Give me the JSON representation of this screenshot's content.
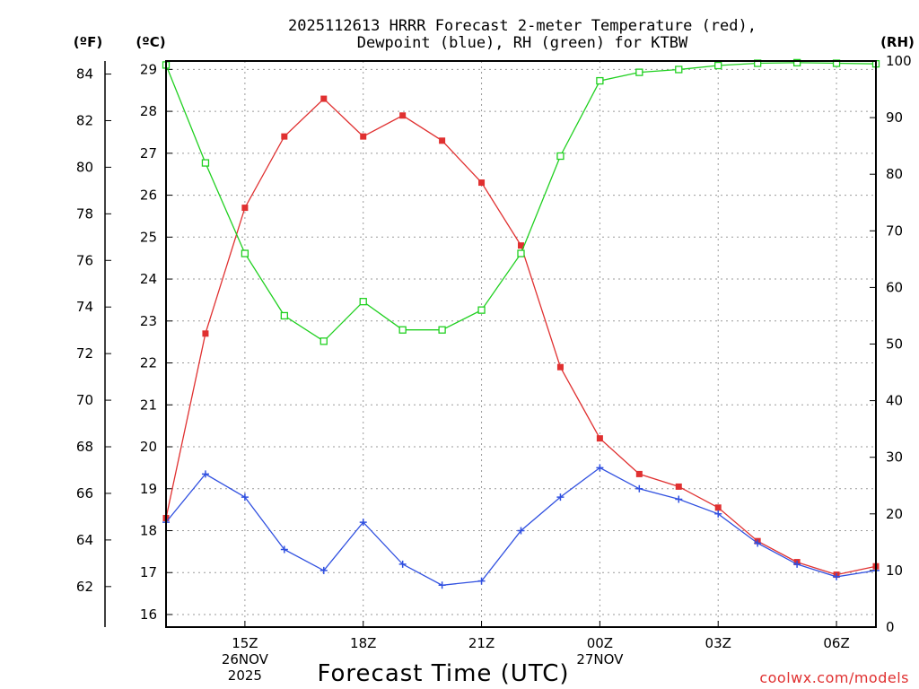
{
  "chart_data": {
    "type": "line",
    "title_line1": "2025112613 HRRR Forecast 2-meter Temperature (red),",
    "title_line2": "Dewpoint (blue), RH (green) for KTBW",
    "xlabel": "Forecast Time (UTC)",
    "credit": "coolwx.com/models",
    "unit_f": "(ºF)",
    "unit_c": "(ºC)",
    "unit_rh": "(RH)",
    "hours": [
      13,
      14,
      15,
      16,
      17,
      18,
      19,
      20,
      21,
      22,
      23,
      24,
      25,
      26,
      27,
      28,
      29,
      30,
      31
    ],
    "xlim": [
      13,
      31
    ],
    "x_ticks": [
      {
        "h": 15,
        "lines": [
          "15Z",
          "26NOV",
          "2025"
        ]
      },
      {
        "h": 18,
        "lines": [
          "18Z"
        ]
      },
      {
        "h": 21,
        "lines": [
          "21Z"
        ]
      },
      {
        "h": 24,
        "lines": [
          "00Z",
          "27NOV"
        ]
      },
      {
        "h": 27,
        "lines": [
          "03Z"
        ]
      },
      {
        "h": 30,
        "lines": [
          "06Z"
        ]
      }
    ],
    "celsius_axis": {
      "ylim": [
        15.7,
        29.2
      ],
      "ticks": [
        16,
        17,
        18,
        19,
        20,
        21,
        22,
        23,
        24,
        25,
        26,
        27,
        28,
        29
      ]
    },
    "fahrenheit_ticks": [
      62,
      64,
      66,
      68,
      70,
      72,
      74,
      76,
      78,
      80,
      82,
      84
    ],
    "rh_axis": {
      "ylim": [
        0,
        100
      ],
      "ticks": [
        0,
        10,
        20,
        30,
        40,
        50,
        60,
        70,
        80,
        90,
        100
      ]
    },
    "series": [
      {
        "name": "Temperature",
        "units": "C",
        "color": "#e03030",
        "marker": "filled-square",
        "values": [
          18.3,
          22.7,
          25.7,
          27.4,
          28.3,
          27.4,
          27.9,
          27.3,
          26.3,
          24.8,
          21.9,
          20.2,
          19.35,
          19.05,
          18.55,
          17.75,
          17.25,
          16.95,
          17.15
        ]
      },
      {
        "name": "Dewpoint",
        "units": "C",
        "color": "#3050e0",
        "marker": "plus",
        "values": [
          18.2,
          19.35,
          18.8,
          17.55,
          17.05,
          18.2,
          17.2,
          16.7,
          16.8,
          18.0,
          18.8,
          19.5,
          19.0,
          18.75,
          18.4,
          17.7,
          17.2,
          16.9,
          17.05
        ]
      },
      {
        "name": "RH",
        "units": "%",
        "color": "#20d020",
        "marker": "open-square",
        "values": [
          99.3,
          82,
          66,
          55,
          50.5,
          57.5,
          52.5,
          52.5,
          56,
          66,
          83.2,
          96.5,
          98,
          98.5,
          99.2,
          99.6,
          99.7,
          99.6,
          99.5
        ]
      }
    ]
  }
}
